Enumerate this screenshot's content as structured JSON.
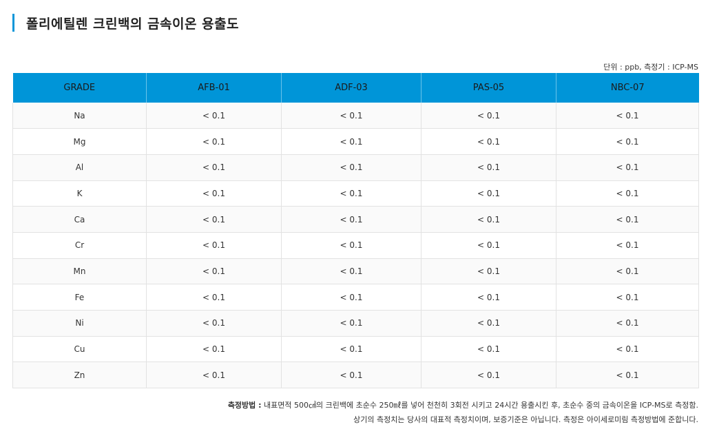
{
  "title": "폴리에틸렌 크린백의 금속이온 용출도",
  "unit_note": "단위 : ppb, 측정기 : ICP-MS",
  "table": {
    "headers": [
      "GRADE",
      "AFB-01",
      "ADF-03",
      "PAS-05",
      "NBC-07"
    ],
    "rows": [
      [
        "Na",
        "< 0.1",
        "< 0.1",
        "< 0.1",
        "< 0.1"
      ],
      [
        "Mg",
        "< 0.1",
        "< 0.1",
        "< 0.1",
        "< 0.1"
      ],
      [
        "Al",
        "< 0.1",
        "< 0.1",
        "< 0.1",
        "< 0.1"
      ],
      [
        "K",
        "< 0.1",
        "< 0.1",
        "< 0.1",
        "< 0.1"
      ],
      [
        "Ca",
        "< 0.1",
        "< 0.1",
        "< 0.1",
        "< 0.1"
      ],
      [
        "Cr",
        "< 0.1",
        "< 0.1",
        "< 0.1",
        "< 0.1"
      ],
      [
        "Mn",
        "< 0.1",
        "< 0.1",
        "< 0.1",
        "< 0.1"
      ],
      [
        "Fe",
        "< 0.1",
        "< 0.1",
        "< 0.1",
        "< 0.1"
      ],
      [
        "Ni",
        "< 0.1",
        "< 0.1",
        "< 0.1",
        "< 0.1"
      ],
      [
        "Cu",
        "< 0.1",
        "< 0.1",
        "< 0.1",
        "< 0.1"
      ],
      [
        "Zn",
        "< 0.1",
        "< 0.1",
        "< 0.1",
        "< 0.1"
      ]
    ]
  },
  "notes": {
    "method_label": "측정방법 :",
    "method_text": " 내표면적 500㎠의 크린백에 초순수 250㎖를 넣어 천천히 3회전 시키고 24시간 용출시킨 후, 초순수 중의 금속이온을 ICP-MS로 측정함.",
    "disclaimer": "상기의 측정치는 당사의 대표적 측정치이며, 보증기준은 아닙니다. 측정은 아이세로미림 측정방법에 준합니다."
  },
  "colors": {
    "accent": "#0a96d9",
    "header_bg": "#0095d8"
  }
}
